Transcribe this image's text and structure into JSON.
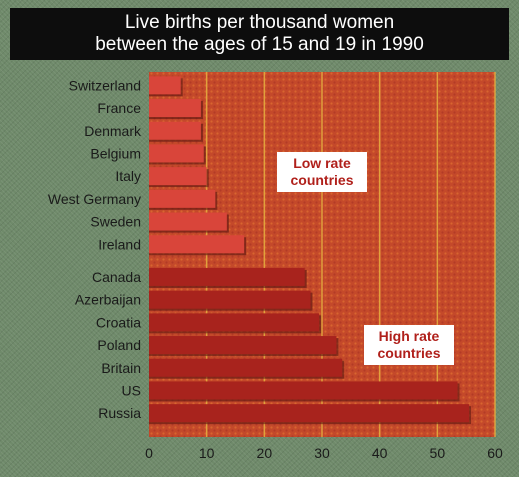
{
  "title_line1": "Live births per thousand women",
  "title_line2": "between the ages of 15 and 19 in 1990",
  "chart_data": {
    "type": "bar",
    "orientation": "horizontal",
    "title": "Live births per thousand women between the ages of 15 and 19 in 1990",
    "xlabel": "",
    "ylabel": "",
    "xlim": [
      0,
      60
    ],
    "xticks": [
      0,
      10,
      20,
      30,
      40,
      50,
      60
    ],
    "grid": true,
    "groups": [
      {
        "annotation": [
          "Low rate",
          "countries"
        ],
        "color": "#d9453a",
        "categories": [
          "Switzerland",
          "France",
          "Denmark",
          "Belgium",
          "Italy",
          "West Germany",
          "Sweden",
          "Ireland"
        ],
        "values": [
          5.5,
          9,
          9,
          9.5,
          10,
          11.5,
          13.5,
          16.5
        ]
      },
      {
        "annotation": [
          "High rate",
          "countries"
        ],
        "color": "#a8231d",
        "categories": [
          "Canada",
          "Azerbaijan",
          "Croatia",
          "Poland",
          "Britain",
          "US",
          "Russia"
        ],
        "values": [
          27,
          28,
          29.5,
          32.5,
          33.5,
          53.5,
          55.5
        ]
      }
    ],
    "colors": {
      "plot_background": "#c4492a",
      "grid": "#e6b040",
      "low_bars": "#d9453a",
      "high_bars": "#a8231d",
      "page_background": "#6f8a6a"
    }
  }
}
